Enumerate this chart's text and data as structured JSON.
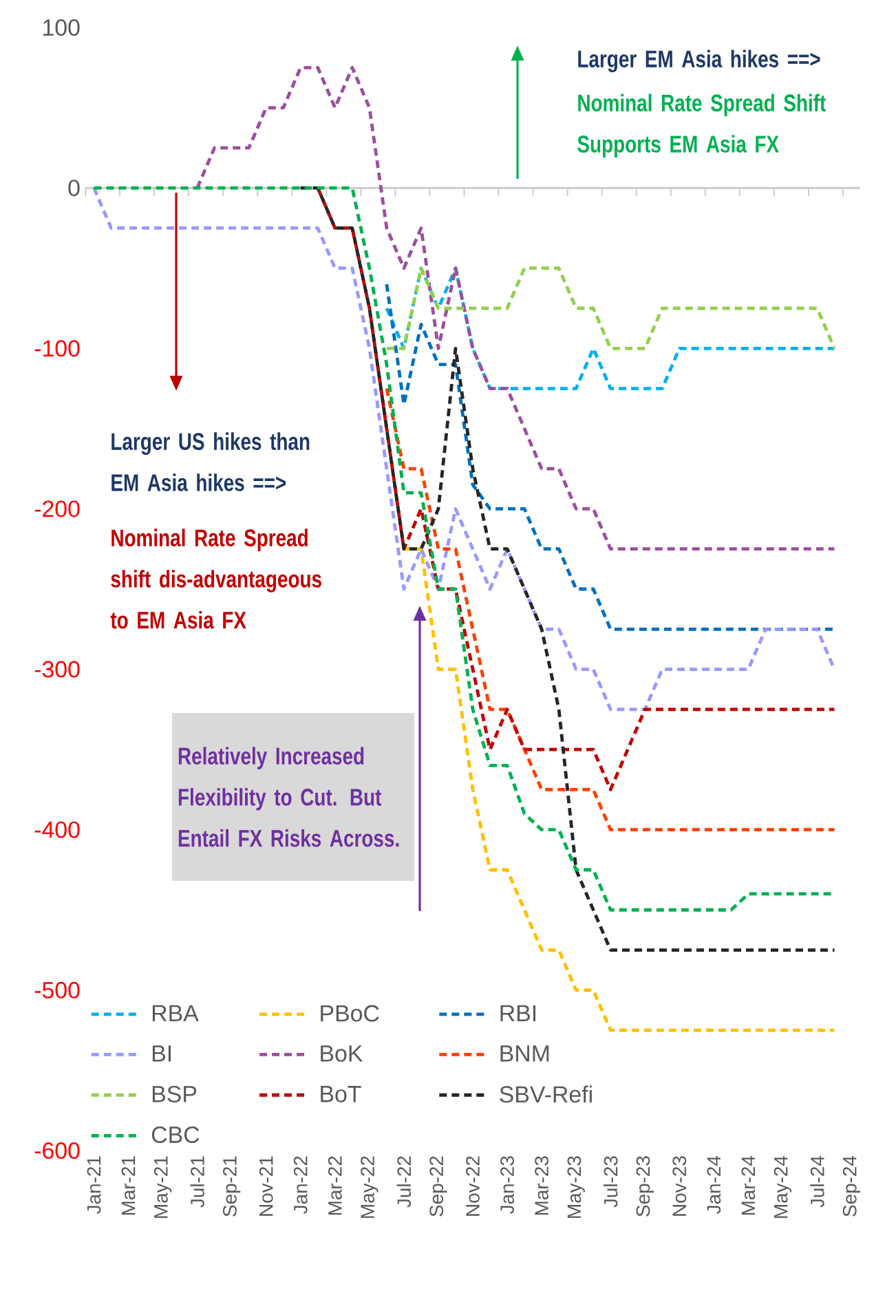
{
  "chart_data": {
    "type": "line",
    "categories": [
      "Jan-21",
      null,
      "Mar-21",
      null,
      "May-21",
      null,
      "Jul-21",
      null,
      "Sep-21",
      null,
      "Nov-21",
      null,
      "Jan-22",
      null,
      "Mar-22",
      null,
      "May-22",
      null,
      "Jul-22",
      null,
      "Sep-22",
      null,
      "Nov-22",
      null,
      "Jan-23",
      null,
      "Mar-23",
      null,
      "May-23",
      null,
      "Jul-23",
      null,
      "Sep-23",
      null,
      "Nov-23",
      null,
      "Jan-24",
      null,
      "Mar-24",
      null,
      "May-24",
      null,
      "Jul-24",
      null,
      "Sep-24"
    ],
    "series": [
      {
        "name": "RBA",
        "color": "#00b0f0",
        "values": [
          null,
          null,
          null,
          null,
          null,
          null,
          null,
          null,
          null,
          null,
          null,
          null,
          null,
          null,
          null,
          null,
          null,
          -75,
          -100,
          -50,
          -75,
          -50,
          -100,
          -125,
          -125,
          -125,
          -125,
          -125,
          -125,
          -100,
          -125,
          -125,
          -125,
          -125,
          -100,
          -100,
          -100,
          -100,
          -100,
          -100,
          -100,
          -100,
          -100,
          -100,
          null
        ]
      },
      {
        "name": "PBoC",
        "color": "#ffc000",
        "values": [
          null,
          null,
          null,
          null,
          null,
          null,
          null,
          null,
          null,
          null,
          null,
          null,
          null,
          null,
          null,
          null,
          null,
          null,
          -225,
          -225,
          -300,
          -300,
          -375,
          -425,
          -425,
          -450,
          -475,
          -475,
          -500,
          -500,
          -525,
          -525,
          -525,
          -525,
          -525,
          -525,
          -525,
          -525,
          -525,
          -525,
          -525,
          -525,
          -525,
          -525,
          null
        ]
      },
      {
        "name": "RBI",
        "color": "#0070c0",
        "values": [
          null,
          null,
          null,
          null,
          null,
          null,
          null,
          null,
          null,
          null,
          null,
          null,
          null,
          null,
          null,
          null,
          null,
          -60,
          -135,
          -85,
          -110,
          -110,
          -185,
          -200,
          -200,
          -200,
          -225,
          -225,
          -250,
          -250,
          -275,
          -275,
          -275,
          -275,
          -275,
          -275,
          -275,
          -275,
          -275,
          -275,
          -275,
          -275,
          -275,
          -275,
          null
        ]
      },
      {
        "name": "BI",
        "color": "#9999ff",
        "values": [
          0,
          -25,
          -25,
          -25,
          -25,
          -25,
          -25,
          -25,
          -25,
          -25,
          -25,
          -25,
          -25,
          -25,
          -50,
          -50,
          -100,
          -175,
          -250,
          -225,
          -250,
          -200,
          -225,
          -250,
          -225,
          -250,
          -275,
          -275,
          -300,
          -300,
          -325,
          -325,
          -325,
          -300,
          -300,
          -300,
          -300,
          -300,
          -300,
          -275,
          -275,
          -275,
          -275,
          -300,
          null
        ]
      },
      {
        "name": "BoK",
        "color": "#9b4f9f",
        "values": [
          null,
          null,
          null,
          null,
          null,
          null,
          0,
          25,
          25,
          25,
          50,
          50,
          75,
          75,
          50,
          75,
          50,
          -25,
          -50,
          -25,
          -100,
          -50,
          -100,
          -125,
          -125,
          -150,
          -175,
          -175,
          -200,
          -200,
          -225,
          -225,
          -225,
          -225,
          -225,
          -225,
          -225,
          -225,
          -225,
          -225,
          -225,
          -225,
          -225,
          -225,
          null
        ]
      },
      {
        "name": "BNM",
        "color": "#ff4000",
        "values": [
          null,
          null,
          null,
          null,
          null,
          null,
          null,
          null,
          null,
          null,
          null,
          null,
          null,
          null,
          null,
          null,
          null,
          -125,
          -175,
          -175,
          -225,
          -225,
          -275,
          -325,
          -325,
          -350,
          -375,
          -375,
          -375,
          -375,
          -400,
          -400,
          -400,
          -400,
          -400,
          -400,
          -400,
          -400,
          -400,
          -400,
          -400,
          -400,
          -400,
          -400,
          null
        ]
      },
      {
        "name": "BSP",
        "color": "#92d050",
        "values": [
          null,
          null,
          null,
          null,
          null,
          null,
          null,
          null,
          null,
          null,
          null,
          null,
          null,
          null,
          null,
          null,
          null,
          -100,
          -100,
          -50,
          -75,
          -75,
          -75,
          -75,
          -75,
          -50,
          -50,
          -50,
          -75,
          -75,
          -100,
          -100,
          -100,
          -75,
          -75,
          -75,
          -75,
          -75,
          -75,
          -75,
          -75,
          -75,
          -75,
          -100,
          null
        ]
      },
      {
        "name": "BoT",
        "color": "#c00000",
        "values": [
          null,
          null,
          null,
          null,
          null,
          null,
          null,
          null,
          null,
          null,
          null,
          null,
          null,
          0,
          -25,
          -25,
          -75,
          -150,
          -225,
          -200,
          -250,
          -250,
          -300,
          -350,
          -325,
          -350,
          -350,
          -350,
          -350,
          -350,
          -375,
          -350,
          -325,
          -325,
          -325,
          -325,
          -325,
          -325,
          -325,
          -325,
          -325,
          -325,
          -325,
          -325,
          null
        ]
      },
      {
        "name": "SBV-Refi",
        "color": "#262626",
        "values": [
          null,
          null,
          null,
          null,
          null,
          null,
          null,
          null,
          null,
          null,
          null,
          null,
          0,
          0,
          -25,
          -25,
          -75,
          -150,
          -225,
          -225,
          -200,
          -100,
          -175,
          -225,
          -225,
          -250,
          -275,
          -325,
          -425,
          -450,
          -475,
          -475,
          -475,
          -475,
          -475,
          -475,
          -475,
          -475,
          -475,
          -475,
          -475,
          -475,
          -475,
          -475,
          null
        ]
      },
      {
        "name": "CBC",
        "color": "#00b050",
        "values": [
          0,
          0,
          0,
          0,
          0,
          0,
          0,
          0,
          0,
          0,
          0,
          0,
          0,
          0,
          0,
          0,
          -50,
          -110,
          -190,
          -190,
          -250,
          -250,
          -325,
          -360,
          -360,
          -390,
          -400,
          -400,
          -425,
          -425,
          -450,
          -450,
          -450,
          -450,
          -450,
          -450,
          -450,
          -450,
          -440,
          -440,
          -440,
          -440,
          -440,
          -440,
          null
        ]
      }
    ],
    "ylim": [
      -600,
      100
    ],
    "yticks": [
      100,
      0,
      -100,
      -200,
      -300,
      -400,
      -500,
      -600
    ],
    "legend": "bottom left",
    "marker": "none",
    "line_style": "dashed",
    "annotations": [
      "Larger EM Asia hikes ==>",
      "Nominal Rate Spread Shift Supports EM Asia FX",
      "Larger US hikes than EM Asia hikes ==>",
      "Nominal Rate Spread shift dis-advantageous to EM Asia FX",
      "Relatively Increased Flexibility to Cut. But Entail FX Risks Across."
    ]
  }
}
